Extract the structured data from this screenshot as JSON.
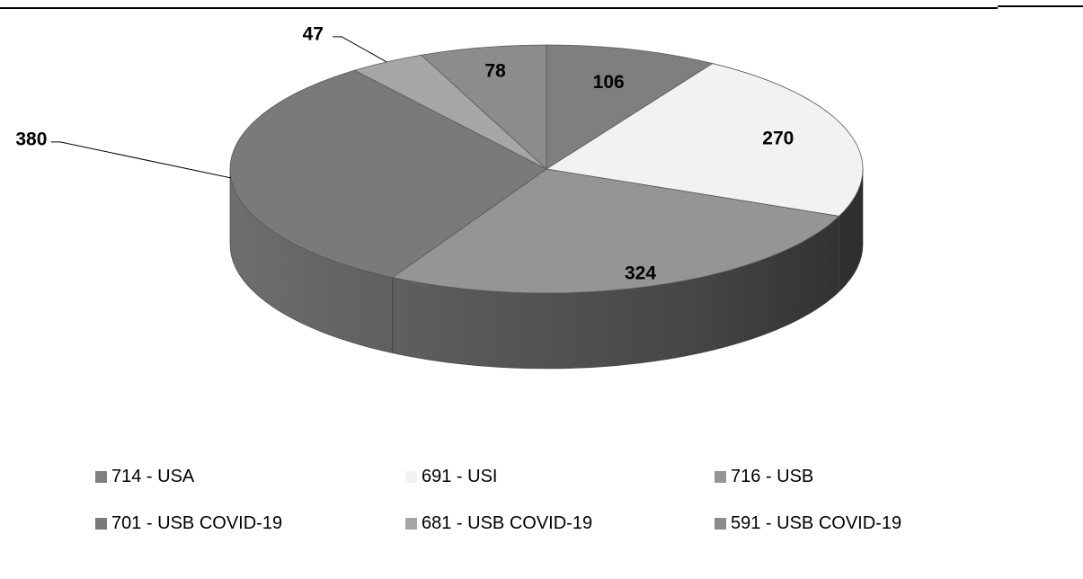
{
  "chart_data": {
    "type": "pie",
    "style": "3d",
    "categories": [
      "714 - USA",
      "691 - USI",
      "716 - USB",
      "701 - USB COVID-19",
      "681 - USB COVID-19",
      "591 - USB COVID-19"
    ],
    "values": [
      106,
      270,
      324,
      380,
      47,
      78
    ],
    "colors": [
      "#7f7f7f",
      "#f2f2f2",
      "#959595",
      "#7a7a7a",
      "#a6a6a6",
      "#8c8c8c"
    ],
    "legend_position": "bottom",
    "title": ""
  },
  "legend": [
    {
      "label": "714 - USA",
      "color": "#7f7f7f"
    },
    {
      "label": "691 - USI",
      "color": "#f2f2f2"
    },
    {
      "label": "716 - USB",
      "color": "#959595"
    },
    {
      "label": "701 - USB COVID-19",
      "color": "#7a7a7a"
    },
    {
      "label": "681 - USB COVID-19",
      "color": "#a6a6a6"
    },
    {
      "label": "591 - USB COVID-19",
      "color": "#8c8c8c"
    }
  ]
}
